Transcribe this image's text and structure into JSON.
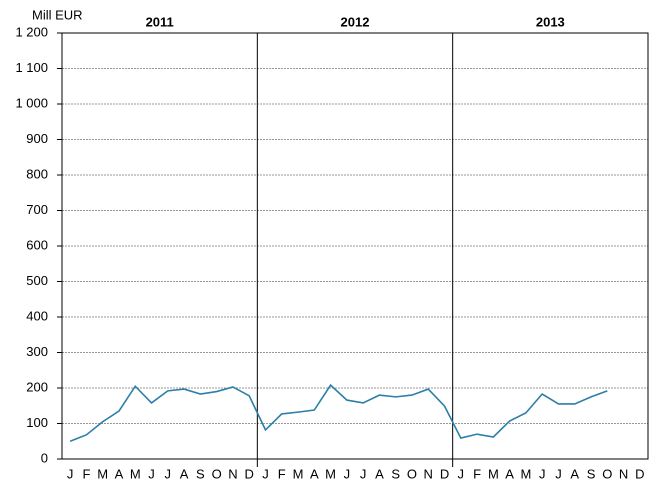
{
  "chart_data": {
    "type": "line",
    "y_label": "Mill EUR",
    "groups": [
      "2011",
      "2012",
      "2013"
    ],
    "categories": [
      "J",
      "F",
      "M",
      "A",
      "M",
      "J",
      "J",
      "A",
      "S",
      "O",
      "N",
      "D",
      "J",
      "F",
      "M",
      "A",
      "M",
      "J",
      "J",
      "A",
      "S",
      "O",
      "N",
      "D",
      "J",
      "F",
      "M",
      "A",
      "M",
      "J",
      "J",
      "A",
      "S",
      "O",
      "N",
      "D"
    ],
    "series": [
      {
        "color": "#2b7fa8",
        "values": [
          50,
          68,
          105,
          135,
          205,
          158,
          192,
          197,
          183,
          190,
          203,
          178,
          82,
          127,
          132,
          138,
          208,
          166,
          158,
          180,
          175,
          180,
          197,
          149,
          59,
          70,
          62,
          107,
          130,
          183,
          155,
          155,
          175,
          192,
          null,
          null
        ]
      }
    ],
    "ylim": [
      0,
      1200
    ],
    "yticks": [
      0,
      100,
      200,
      300,
      400,
      500,
      600,
      700,
      800,
      900,
      {
        "value": 1000,
        "label": "1 000"
      },
      {
        "value": 1100,
        "label": "1 100"
      },
      {
        "value": 1200,
        "label": "1 200"
      }
    ],
    "grid": true
  }
}
